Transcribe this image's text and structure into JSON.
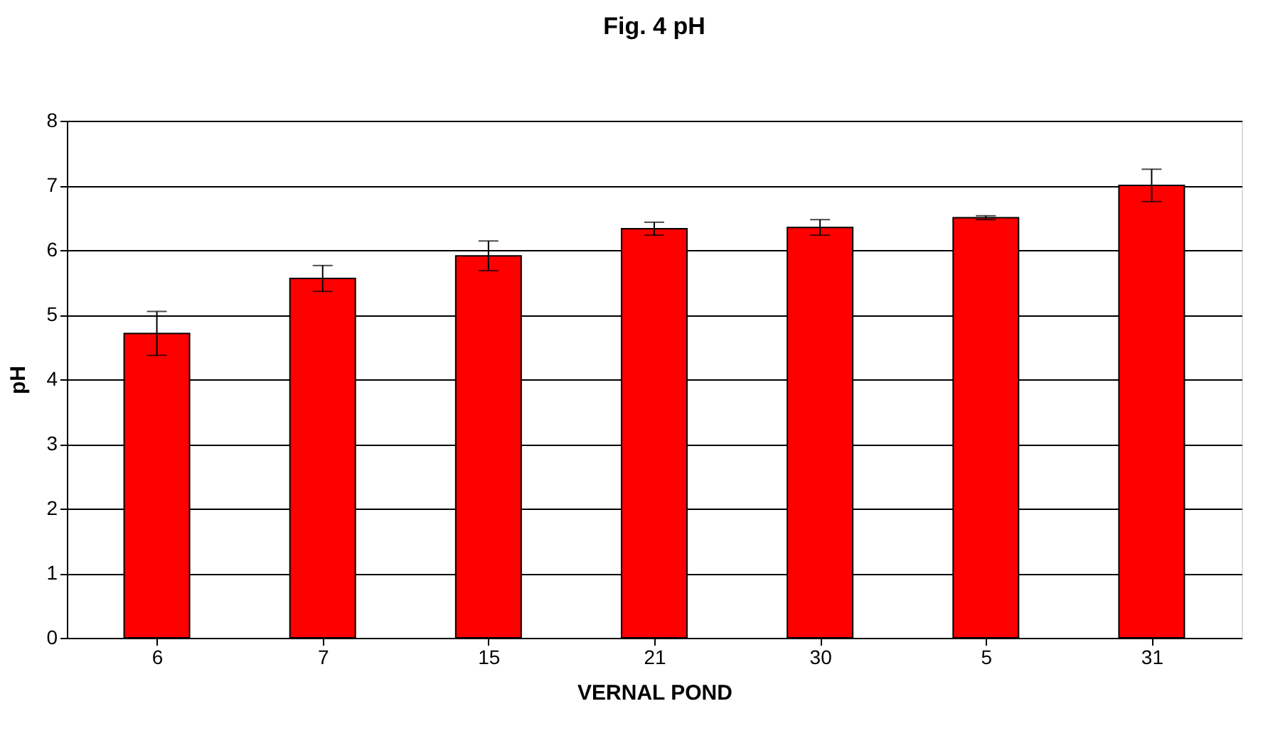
{
  "chart_data": {
    "type": "bar",
    "title": "Fig. 4 pH",
    "xlabel": "VERNAL POND",
    "ylabel": "pH",
    "categories": [
      "6",
      "7",
      "15",
      "21",
      "30",
      "5",
      "31"
    ],
    "values": [
      4.71,
      5.56,
      5.91,
      6.33,
      6.35,
      6.5,
      7.0
    ],
    "errors": [
      0.34,
      0.2,
      0.23,
      0.1,
      0.12,
      0.03,
      0.25
    ],
    "color": "#ff0000",
    "ylim": [
      0,
      8
    ],
    "yticks": [
      0,
      1,
      2,
      3,
      4,
      5,
      6,
      7,
      8
    ],
    "grid": "y"
  }
}
